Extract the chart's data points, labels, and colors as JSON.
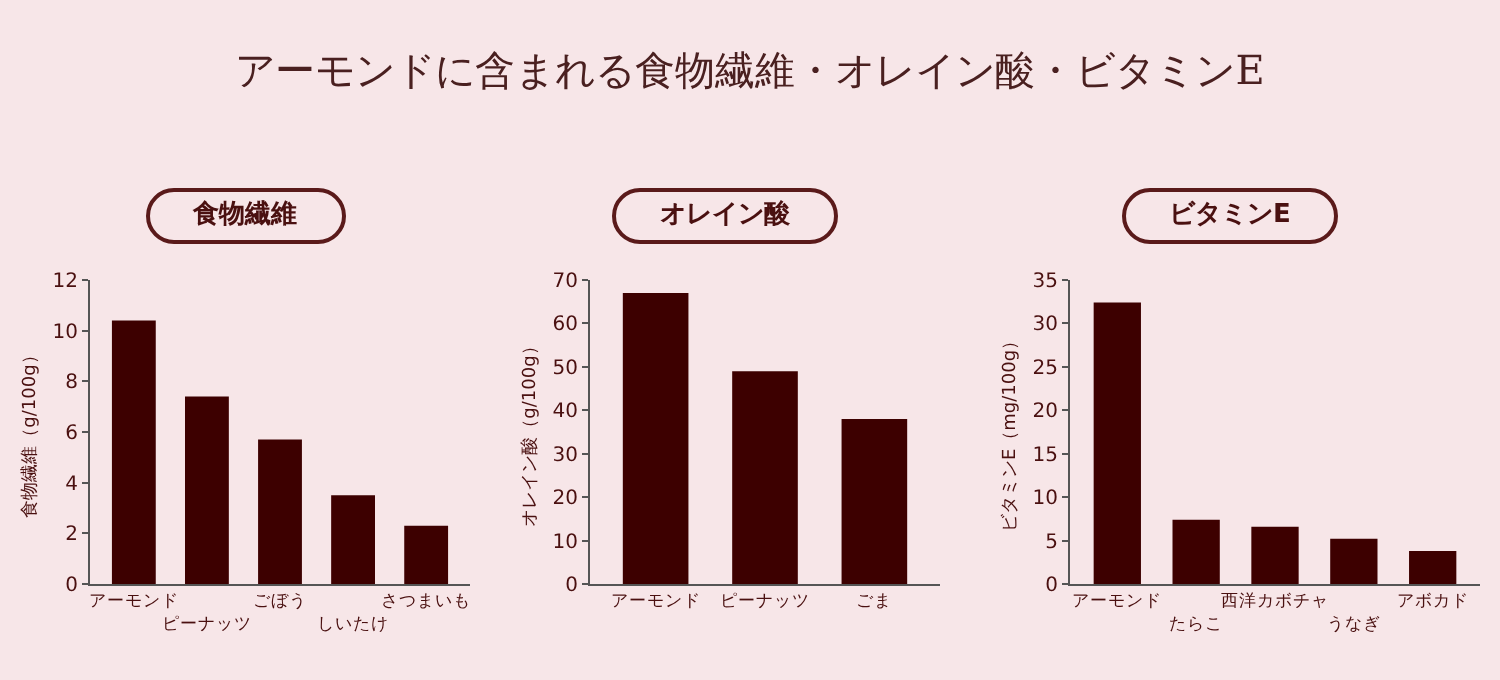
{
  "chart_data": [
    {
      "type": "bar",
      "title": "食物繊維",
      "annotations": [
        "アーモンドに含まれる食物繊維・オレイン酸・ビタミンE"
      ],
      "ylabel": "食物繊維（g/100g）",
      "categories": [
        "アーモンド",
        "ピーナッツ",
        "ごぼう",
        "しいたけ",
        "さつまいも"
      ],
      "values": [
        10.4,
        7.4,
        5.7,
        3.5,
        2.3
      ],
      "color": "#3d0000",
      "ylim": [
        0,
        12
      ],
      "yticks": [
        0,
        2,
        4,
        6,
        8,
        10,
        12
      ],
      "grid": false
    },
    {
      "type": "bar",
      "title": "オレイン酸",
      "ylabel": "オレイン酸（g/100g）",
      "categories": [
        "アーモンド",
        "ピーナッツ",
        "ごま"
      ],
      "values": [
        67,
        49,
        38
      ],
      "color": "#3d0000",
      "ylim": [
        0,
        70
      ],
      "yticks": [
        0,
        10,
        20,
        30,
        40,
        50,
        60,
        70
      ],
      "grid": false
    },
    {
      "type": "bar",
      "title": "ビタミンE",
      "ylabel": "ビタミンE（mg/100g）",
      "categories": [
        "アーモンド",
        "たらこ",
        "西洋カボチャ",
        "うなぎ",
        "アボカド"
      ],
      "values": [
        32.4,
        7.4,
        6.6,
        5.2,
        3.8
      ],
      "color": "#3d0000",
      "ylim": [
        0,
        35
      ],
      "yticks": [
        0,
        5,
        10,
        15,
        20,
        25,
        30,
        35
      ],
      "grid": false
    }
  ]
}
